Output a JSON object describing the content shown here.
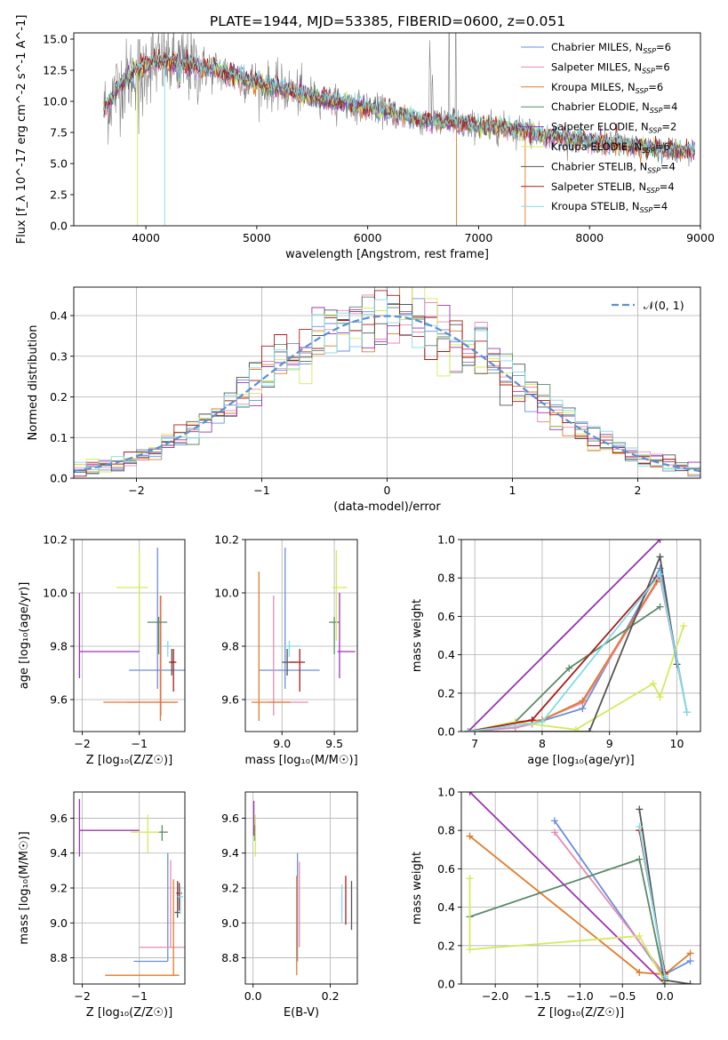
{
  "figure": {
    "title": "PLATE=1944, MJD=53385, FIBERID=0600, z=0.051"
  },
  "colors": {
    "Chabrier MILES": "#6a8fd8",
    "Salpeter MILES": "#e98ab4",
    "Kroupa MILES": "#e07b2a",
    "Chabrier ELODIE": "#5a8a68",
    "Salpeter ELODIE": "#9a35b2",
    "Kroupa ELODIE": "#d4ea5a",
    "Chabrier STELIB": "#555555",
    "Salpeter STELIB": "#a81c1c",
    "Kroupa STELIB": "#80dbe6",
    "data": "#808080",
    "normal": "#5b8fd6"
  },
  "chart_data": [
    {
      "id": "spectrum",
      "type": "line",
      "title": "PLATE=1944, MJD=53385, FIBERID=0600, z=0.051",
      "xlabel": "wavelength [Angstrom, rest frame]",
      "ylabel": "Flux [f_λ 10^-17 erg cm^-2 s^-1 A^-1]",
      "xlim": [
        3350,
        9000
      ],
      "ylim": [
        0,
        15.5
      ],
      "xticks": [
        4000,
        5000,
        6000,
        7000,
        8000,
        9000
      ],
      "yticks": [
        0.0,
        2.5,
        5.0,
        7.5,
        10.0,
        12.5,
        15.0
      ],
      "legend_position": "top-right",
      "legend": [
        {
          "label": "Chabrier MILES, N",
          "sub": "SSP",
          "tail": "=6",
          "model": "Chabrier MILES"
        },
        {
          "label": "Salpeter MILES, N",
          "sub": "SSP",
          "tail": "=6",
          "model": "Salpeter MILES"
        },
        {
          "label": "Kroupa MILES, N",
          "sub": "SSP",
          "tail": "=6",
          "model": "Kroupa MILES"
        },
        {
          "label": "Chabrier ELODIE, N",
          "sub": "SSP",
          "tail": "=4",
          "model": "Chabrier ELODIE"
        },
        {
          "label": "Salpeter ELODIE, N",
          "sub": "SSP",
          "tail": "=2",
          "model": "Salpeter ELODIE"
        },
        {
          "label": "Kroupa ELODIE, N",
          "sub": "SSP",
          "tail": "=6",
          "model": "Kroupa ELODIE"
        },
        {
          "label": "Chabrier STELIB, N",
          "sub": "SSP",
          "tail": "=4",
          "model": "Chabrier STELIB"
        },
        {
          "label": "Salpeter STELIB, N",
          "sub": "SSP",
          "tail": "=4",
          "model": "Salpeter STELIB"
        },
        {
          "label": "Kroupa STELIB, N",
          "sub": "SSP",
          "tail": "=4",
          "model": "Kroupa STELIB"
        }
      ],
      "continuum": [
        [
          3600,
          8.9
        ],
        [
          3750,
          11.2
        ],
        [
          3900,
          12.4
        ],
        [
          4050,
          13.2
        ],
        [
          4300,
          13.0
        ],
        [
          4600,
          12.6
        ],
        [
          5000,
          11.5
        ],
        [
          5500,
          10.4
        ],
        [
          6000,
          9.5
        ],
        [
          6500,
          8.5
        ],
        [
          7000,
          8.0
        ],
        [
          7400,
          7.7
        ],
        [
          7600,
          7.2
        ],
        [
          8000,
          6.8
        ],
        [
          8500,
          6.3
        ],
        [
          8950,
          6.0
        ]
      ]
    },
    {
      "id": "residuals",
      "type": "line",
      "xlabel": "(data-model)/error",
      "ylabel": "Normed distribution",
      "xlim": [
        -2.5,
        2.5
      ],
      "ylim": [
        0,
        0.47
      ],
      "xticks": [
        -2,
        -1,
        0,
        1,
        2
      ],
      "yticks": [
        0.0,
        0.1,
        0.2,
        0.3,
        0.4
      ],
      "grid": true,
      "legend_position": "top-right",
      "reference_label": "𝒩(0, 1)",
      "bins": {
        "start": -2.5,
        "width": 0.1,
        "count": 50
      }
    },
    {
      "id": "age-vs-Z",
      "type": "scatter",
      "xlabel": "Z [log₁₀(Z/Z☉)]",
      "ylabel": "age  [log₁₀(age/yr)]",
      "xlim": [
        -2.15,
        -0.2
      ],
      "ylim": [
        9.48,
        10.2
      ],
      "xticks": [
        -2,
        -1
      ],
      "yticks": [
        9.6,
        9.8,
        10.0,
        10.2
      ],
      "grid": true,
      "points": [
        {
          "model": "Chabrier MILES",
          "x": -0.68,
          "y": 9.71,
          "x_err": [
            0.5,
            0.5
          ],
          "y_err": [
            0.07,
            0.46
          ]
        },
        {
          "model": "Salpeter MILES",
          "x": -0.62,
          "y": 9.59,
          "x_err": [
            0.6,
            0.3
          ],
          "y_err": [
            0.05,
            0.4
          ]
        },
        {
          "model": "Kroupa MILES",
          "x": -0.63,
          "y": 9.59,
          "x_err": [
            1.0,
            0.3
          ],
          "y_err": [
            0.07,
            0.4
          ]
        },
        {
          "model": "Chabrier ELODIE",
          "x": -0.66,
          "y": 9.89,
          "x_err": [
            0.2,
            0.15
          ],
          "y_err": [
            0.12,
            0.02
          ]
        },
        {
          "model": "Salpeter ELODIE",
          "x": -2.05,
          "y": 9.78,
          "x_err": [
            0.0,
            1.05
          ],
          "y_err": [
            0.1,
            0.22
          ]
        },
        {
          "model": "Kroupa ELODIE",
          "x": -1.0,
          "y": 10.02,
          "x_err": [
            0.4,
            0.15
          ],
          "y_err": [
            0.2,
            0.14
          ]
        },
        {
          "model": "Chabrier STELIB",
          "x": -0.43,
          "y": 9.74,
          "x_err": [
            0.05,
            0.05
          ],
          "y_err": [
            0.05,
            0.05
          ]
        },
        {
          "model": "Salpeter STELIB",
          "x": -0.4,
          "y": 9.74,
          "x_err": [
            0.05,
            0.05
          ],
          "y_err": [
            0.11,
            0.05
          ]
        },
        {
          "model": "Kroupa STELIB",
          "x": -0.5,
          "y": 9.8,
          "x_err": [
            0.05,
            0.05
          ],
          "y_err": [
            0.04,
            0.02
          ]
        }
      ]
    },
    {
      "id": "age-vs-mass",
      "type": "scatter",
      "xlabel": "mass [log₁₀(M/M☉)]",
      "ylabel": "",
      "xlim": [
        8.65,
        9.72
      ],
      "ylim": [
        9.48,
        10.2
      ],
      "xticks": [
        9.0,
        9.5
      ],
      "yticks": [
        9.6,
        9.8,
        10.0,
        10.2
      ],
      "grid": true,
      "points": [
        {
          "model": "Chabrier MILES",
          "x": 9.03,
          "y": 9.71,
          "x_err": [
            0.25,
            0.33
          ],
          "y_err": [
            0.07,
            0.46
          ]
        },
        {
          "model": "Salpeter MILES",
          "x": 8.92,
          "y": 9.59,
          "x_err": [
            0.05,
            0.33
          ],
          "y_err": [
            0.05,
            0.4
          ]
        },
        {
          "model": "Kroupa MILES",
          "x": 8.78,
          "y": 9.59,
          "x_err": [
            0.07,
            0.3
          ],
          "y_err": [
            0.07,
            0.49
          ]
        },
        {
          "model": "Chabrier ELODIE",
          "x": 9.5,
          "y": 9.89,
          "x_err": [
            0.05,
            0.05
          ],
          "y_err": [
            0.12,
            0.02
          ]
        },
        {
          "model": "Salpeter ELODIE",
          "x": 9.55,
          "y": 9.78,
          "x_err": [
            0.02,
            0.15
          ],
          "y_err": [
            0.1,
            0.22
          ]
        },
        {
          "model": "Kroupa ELODIE",
          "x": 9.52,
          "y": 10.02,
          "x_err": [
            0.04,
            0.1
          ],
          "y_err": [
            0.2,
            0.14
          ]
        },
        {
          "model": "Chabrier STELIB",
          "x": 9.05,
          "y": 9.74,
          "x_err": [
            0.05,
            0.1
          ],
          "y_err": [
            0.05,
            0.05
          ]
        },
        {
          "model": "Salpeter STELIB",
          "x": 9.17,
          "y": 9.74,
          "x_err": [
            0.1,
            0.05
          ],
          "y_err": [
            0.11,
            0.05
          ]
        },
        {
          "model": "Kroupa STELIB",
          "x": 9.07,
          "y": 9.8,
          "x_err": [
            0.05,
            0.1
          ],
          "y_err": [
            0.04,
            0.02
          ]
        }
      ]
    },
    {
      "id": "massweight-vs-age",
      "type": "line",
      "xlabel": "age  [log₁₀(age/yr)]",
      "ylabel": "mass weight",
      "xlim": [
        6.8,
        10.35
      ],
      "ylim": [
        0,
        1.0
      ],
      "xticks": [
        7,
        8,
        9,
        10
      ],
      "yticks": [
        0.0,
        0.2,
        0.4,
        0.6,
        0.8,
        1.0
      ],
      "grid": true,
      "series": [
        {
          "model": "Chabrier MILES",
          "x": [
            6.9,
            7.6,
            7.85,
            8.6,
            9.75,
            10.15
          ],
          "y": [
            0.0,
            0.02,
            0.04,
            0.12,
            0.85,
            0.1
          ]
        },
        {
          "model": "Salpeter MILES",
          "x": [
            6.9,
            7.6,
            7.85,
            8.6,
            9.75,
            10.15
          ],
          "y": [
            0.0,
            0.02,
            0.04,
            0.15,
            0.8,
            0.1
          ]
        },
        {
          "model": "Kroupa MILES",
          "x": [
            6.9,
            7.6,
            8.0,
            8.6,
            9.7
          ],
          "y": [
            0.0,
            0.05,
            0.06,
            0.16,
            0.78
          ]
        },
        {
          "model": "Chabrier ELODIE",
          "x": [
            6.9,
            7.6,
            8.4,
            9.75
          ],
          "y": [
            0.0,
            0.05,
            0.33,
            0.65
          ]
        },
        {
          "model": "Salpeter ELODIE",
          "x": [
            6.9,
            9.75
          ],
          "y": [
            0.0,
            1.0
          ]
        },
        {
          "model": "Kroupa ELODIE",
          "x": [
            6.9,
            7.6,
            8.5,
            9.65,
            9.75,
            10.1
          ],
          "y": [
            0.0,
            0.05,
            0.01,
            0.25,
            0.18,
            0.55
          ]
        },
        {
          "model": "Chabrier STELIB",
          "x": [
            6.9,
            8.7,
            9.75,
            10.0
          ],
          "y": [
            0.0,
            0.0,
            0.91,
            0.35
          ]
        },
        {
          "model": "Salpeter STELIB",
          "x": [
            6.9,
            7.85,
            9.7
          ],
          "y": [
            0.0,
            0.06,
            0.8
          ]
        },
        {
          "model": "Kroupa STELIB",
          "x": [
            6.9,
            8.0,
            9.75,
            10.15
          ],
          "y": [
            0.0,
            0.05,
            0.82,
            0.1
          ]
        }
      ]
    },
    {
      "id": "mass-vs-Z",
      "type": "scatter",
      "xlabel": "Z [log₁₀(Z/Z☉)]",
      "ylabel": "mass [log₁₀(M/M☉)]",
      "xlim": [
        -2.15,
        -0.2
      ],
      "ylim": [
        8.65,
        9.75
      ],
      "xticks": [
        -2,
        -1
      ],
      "yticks": [
        8.8,
        9.0,
        9.2,
        9.4,
        9.6
      ],
      "grid": true,
      "points": [
        {
          "model": "Chabrier MILES",
          "x": -0.5,
          "y": 8.78,
          "x_err": [
            0.6,
            0.0
          ],
          "y_err": [
            0.0,
            0.62
          ]
        },
        {
          "model": "Salpeter MILES",
          "x": -0.45,
          "y": 8.86,
          "x_err": [
            0.55,
            0.25
          ],
          "y_err": [
            0.0,
            0.5
          ]
        },
        {
          "model": "Kroupa MILES",
          "x": -0.4,
          "y": 8.7,
          "x_err": [
            1.2,
            0.1
          ],
          "y_err": [
            0.0,
            0.55
          ]
        },
        {
          "model": "Chabrier ELODIE",
          "x": -0.6,
          "y": 9.52,
          "x_err": [
            0.1,
            0.1
          ],
          "y_err": [
            0.05,
            0.04
          ]
        },
        {
          "model": "Salpeter ELODIE",
          "x": -2.05,
          "y": 9.53,
          "x_err": [
            0.0,
            1.05
          ],
          "y_err": [
            0.15,
            0.18
          ]
        },
        {
          "model": "Kroupa ELODIE",
          "x": -0.85,
          "y": 9.52,
          "x_err": [
            0.3,
            0.2
          ],
          "y_err": [
            0.12,
            0.1
          ]
        },
        {
          "model": "Chabrier STELIB",
          "x": -0.33,
          "y": 9.06,
          "x_err": [
            0.05,
            0.05
          ],
          "y_err": [
            0.03,
            0.18
          ]
        },
        {
          "model": "Salpeter STELIB",
          "x": -0.3,
          "y": 9.17,
          "x_err": [
            0.05,
            0.05
          ],
          "y_err": [
            0.1,
            0.06
          ]
        },
        {
          "model": "Kroupa STELIB",
          "x": -0.28,
          "y": 9.15,
          "x_err": [
            0.05,
            0.05
          ],
          "y_err": [
            0.1,
            0.06
          ]
        }
      ]
    },
    {
      "id": "mass-vs-EBV",
      "type": "scatter",
      "xlabel": "E(B-V)",
      "ylabel": "",
      "xlim": [
        -0.02,
        0.27
      ],
      "ylim": [
        8.65,
        9.75
      ],
      "xticks": [
        0.0,
        0.2
      ],
      "yticks": [
        8.8,
        9.0,
        9.2,
        9.4,
        9.6
      ],
      "grid": true,
      "points": [
        {
          "model": "Chabrier MILES",
          "x": 0.115,
          "y": 9.1,
          "x_err": [
            0.0,
            0.0
          ],
          "y_err": [
            0.32,
            0.3
          ]
        },
        {
          "model": "Salpeter MILES",
          "x": 0.12,
          "y": 9.1,
          "x_err": [
            0.0,
            0.0
          ],
          "y_err": [
            0.24,
            0.25
          ]
        },
        {
          "model": "Kroupa MILES",
          "x": 0.113,
          "y": 9.0,
          "x_err": [
            0.0,
            0.0
          ],
          "y_err": [
            0.3,
            0.27
          ]
        },
        {
          "model": "Chabrier ELODIE",
          "x": 0.004,
          "y": 9.52,
          "x_err": [
            0.0,
            0.0
          ],
          "y_err": [
            0.05,
            0.04
          ]
        },
        {
          "model": "Salpeter ELODIE",
          "x": 0.002,
          "y": 9.6,
          "x_err": [
            0.0,
            0.0
          ],
          "y_err": [
            0.1,
            0.1
          ]
        },
        {
          "model": "Kroupa ELODIE",
          "x": 0.006,
          "y": 9.5,
          "x_err": [
            0.0,
            0.0
          ],
          "y_err": [
            0.12,
            0.12
          ]
        },
        {
          "model": "Chabrier STELIB",
          "x": 0.255,
          "y": 9.1,
          "x_err": [
            0.0,
            0.0
          ],
          "y_err": [
            0.14,
            0.14
          ]
        },
        {
          "model": "Salpeter STELIB",
          "x": 0.24,
          "y": 9.12,
          "x_err": [
            0.0,
            0.0
          ],
          "y_err": [
            0.13,
            0.15
          ]
        },
        {
          "model": "Kroupa STELIB",
          "x": 0.23,
          "y": 9.1,
          "x_err": [
            0.0,
            0.0
          ],
          "y_err": [
            0.1,
            0.12
          ]
        }
      ]
    },
    {
      "id": "massweight-vs-Z",
      "type": "line",
      "xlabel": "Z [log₁₀(Z/Z☉)]",
      "ylabel": "mass weight",
      "xlim": [
        -2.4,
        0.42
      ],
      "ylim": [
        0,
        1.0
      ],
      "xticks": [
        -2.0,
        -1.5,
        -1.0,
        -0.5,
        0.0
      ],
      "yticks": [
        0.0,
        0.2,
        0.4,
        0.6,
        0.8,
        1.0
      ],
      "grid": true,
      "series": [
        {
          "model": "Chabrier MILES",
          "x": [
            -1.3,
            0.0,
            0.0,
            0.3
          ],
          "y": [
            0.85,
            0.03,
            0.05,
            0.12
          ]
        },
        {
          "model": "Salpeter MILES",
          "x": [
            -1.3,
            -0.02,
            0.0
          ],
          "y": [
            0.79,
            0.06,
            0.02
          ]
        },
        {
          "model": "Kroupa MILES",
          "x": [
            -2.3,
            -0.3,
            0.0,
            0.3
          ],
          "y": [
            0.77,
            0.06,
            0.05,
            0.16
          ]
        },
        {
          "model": "Chabrier ELODIE",
          "x": [
            -2.3,
            -0.3,
            0.0
          ],
          "y": [
            0.35,
            0.65,
            0.01
          ]
        },
        {
          "model": "Salpeter ELODIE",
          "x": [
            -2.3,
            0.0
          ],
          "y": [
            1.0,
            0.0
          ]
        },
        {
          "model": "Kroupa ELODIE",
          "x": [
            -2.3,
            -2.3,
            -0.3,
            0.0
          ],
          "y": [
            0.55,
            0.18,
            0.25,
            0.01
          ]
        },
        {
          "model": "Chabrier STELIB",
          "x": [
            -0.3,
            0.0,
            0.3
          ],
          "y": [
            0.91,
            0.02,
            0.0
          ]
        },
        {
          "model": "Salpeter STELIB",
          "x": [
            -0.3,
            0.0
          ],
          "y": [
            0.8,
            0.06
          ]
        },
        {
          "model": "Kroupa STELIB",
          "x": [
            -0.3,
            0.0
          ],
          "y": [
            0.82,
            0.04
          ]
        }
      ]
    }
  ]
}
